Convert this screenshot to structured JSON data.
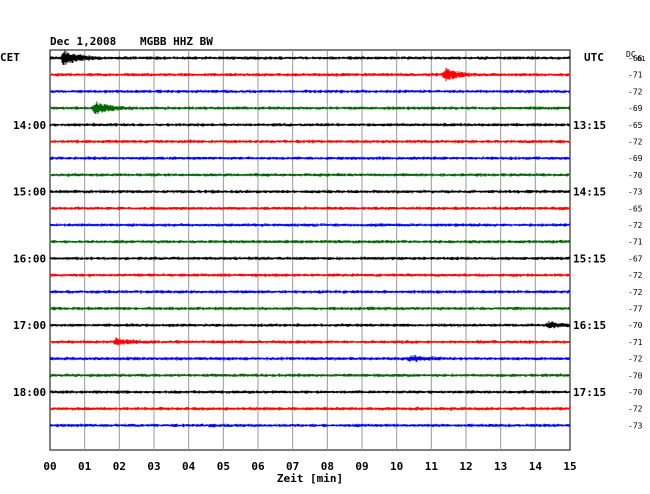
{
  "header": {
    "date": "Dec 1,2008",
    "station": "MGBB HHZ BW",
    "left_zone": "CET",
    "right_zone": "UTC",
    "dc_label": "DC",
    "dc_sub": "01"
  },
  "chart_data": {
    "type": "line",
    "title": "Dec 1,2008   MGBB HHZ BW",
    "xlabel": "Zeit [min]",
    "xlim": [
      0,
      15
    ],
    "x_ticks": [
      "00",
      "01",
      "02",
      "03",
      "04",
      "05",
      "06",
      "07",
      "08",
      "09",
      "10",
      "11",
      "12",
      "13",
      "14",
      "15"
    ],
    "grid": true,
    "trace_colors": [
      "#000000",
      "#ff0000",
      "#0000ff",
      "#006600"
    ],
    "left_time_labels": [
      {
        "row": 4,
        "text": "14:00"
      },
      {
        "row": 8,
        "text": "15:00"
      },
      {
        "row": 12,
        "text": "16:00"
      },
      {
        "row": 16,
        "text": "17:00"
      },
      {
        "row": 20,
        "text": "18:00"
      }
    ],
    "right_time_labels": [
      {
        "row": 4,
        "text": "13:15"
      },
      {
        "row": 8,
        "text": "14:15"
      },
      {
        "row": 12,
        "text": "15:15"
      },
      {
        "row": 16,
        "text": "16:15"
      },
      {
        "row": 20,
        "text": "17:15"
      }
    ],
    "dc_values": [
      "-66",
      "-71",
      "-72",
      "-69",
      "-65",
      "-72",
      "-69",
      "-70",
      "-73",
      "-65",
      "-72",
      "-71",
      "-67",
      "-72",
      "-72",
      "-77",
      "-70",
      "-71",
      "-72",
      "-70",
      "-70",
      "-72",
      "-73"
    ],
    "events": [
      {
        "row": 0,
        "minute": 0.4,
        "amp": 8
      },
      {
        "row": 1,
        "minute": 11.4,
        "amp": 6
      },
      {
        "row": 3,
        "minute": 1.3,
        "amp": 6
      },
      {
        "row": 16,
        "minute": 14.4,
        "amp": 3
      },
      {
        "row": 17,
        "minute": 1.9,
        "amp": 3
      },
      {
        "row": 18,
        "minute": 10.4,
        "amp": 3
      }
    ]
  }
}
